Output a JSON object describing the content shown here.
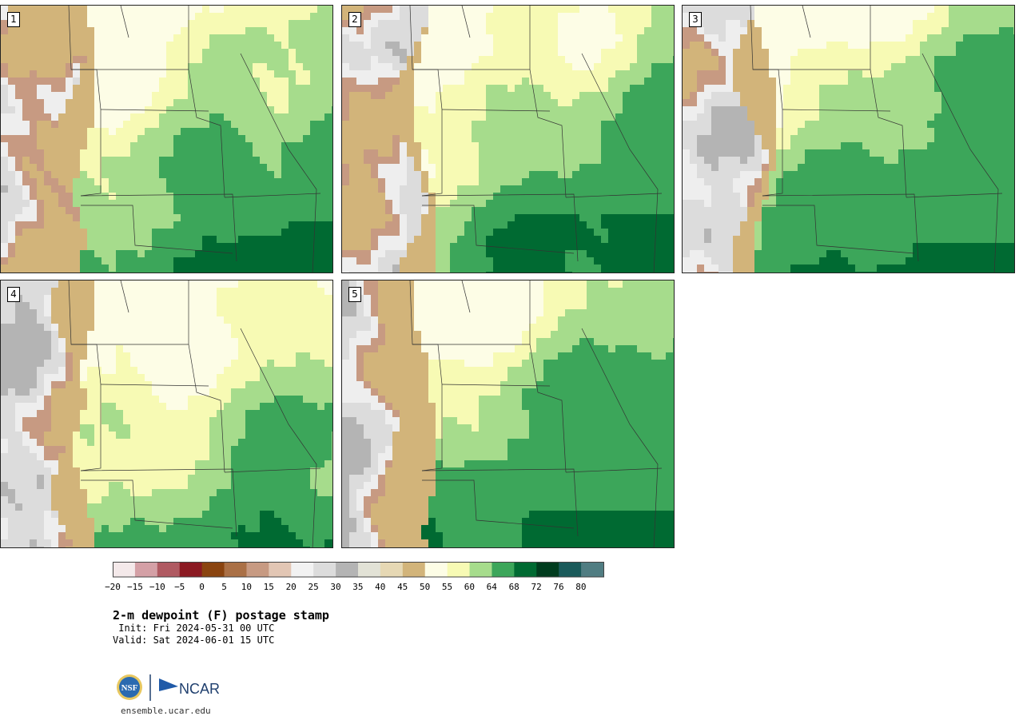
{
  "panels": [
    {
      "label": "1",
      "moisture": 0.78,
      "dark_south": 0.55
    },
    {
      "label": "2",
      "moisture": 0.8,
      "dark_south": 0.65
    },
    {
      "label": "3",
      "moisture": 0.88,
      "dark_south": 0.35
    },
    {
      "label": "4",
      "moisture": 0.66,
      "dark_south": 0.45
    },
    {
      "label": "5",
      "moisture": 0.9,
      "dark_south": 0.4
    }
  ],
  "colorbar": {
    "ticks": [
      "−20",
      "−15",
      "−10",
      "−5",
      "0",
      "5",
      "10",
      "15",
      "20",
      "25",
      "30",
      "35",
      "40",
      "45",
      "50",
      "55",
      "60",
      "64",
      "68",
      "72",
      "76",
      "80"
    ],
    "colors": [
      "#f4e9ea",
      "#d4a0a6",
      "#b05a62",
      "#8b1a22",
      "#8a4410",
      "#aa7046",
      "#c79a82",
      "#e2c6b4",
      "#f2f2f2",
      "#dcdcdc",
      "#b4b4b4",
      "#e2e2d6",
      "#e6d8b4",
      "#d2b47a",
      "#fdfde6",
      "#f7fab4",
      "#a6dc8c",
      "#3ca65a",
      "#006a32",
      "#003c1e",
      "#1a5a5a",
      "#507d82"
    ]
  },
  "title": "2-m dewpoint (F) postage stamp",
  "init": " Init: Fri 2024-05-31 00 UTC",
  "valid": "Valid: Sat 2024-06-01 15 UTC",
  "logo": {
    "nsf": "NSF",
    "ncar": "NCAR"
  },
  "url": "ensemble.ucar.edu"
}
